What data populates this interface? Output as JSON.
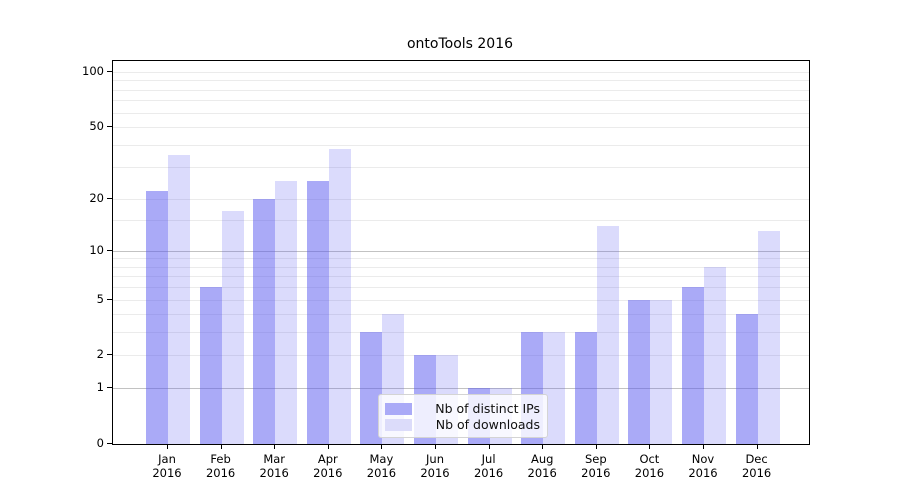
{
  "title": "ontoTools 2016",
  "chart_data": {
    "type": "bar",
    "title": "ontoTools 2016",
    "x_months": [
      "Jan",
      "Feb",
      "Mar",
      "Apr",
      "May",
      "Jun",
      "Jul",
      "Aug",
      "Sep",
      "Oct",
      "Nov",
      "Dec"
    ],
    "x_year": "2016",
    "series": [
      {
        "name": "Nb of distinct IPs",
        "bar_color": "rgba(85,85,240,0.5)",
        "swatch_color": "#aaaaf7",
        "values": [
          22,
          6,
          20,
          25,
          3,
          2,
          1,
          3,
          3,
          5,
          6,
          4
        ]
      },
      {
        "name": "Nb of downloads",
        "bar_color": "rgba(85,85,240,0.21)",
        "swatch_color": "#dcdcfa",
        "values": [
          35,
          17,
          25,
          38,
          4,
          2,
          1,
          3,
          14,
          5,
          8,
          13
        ]
      }
    ],
    "y_axis": {
      "scale": "mirrorLog",
      "tick_labels": [
        100,
        50,
        20,
        10,
        5,
        2,
        1,
        0
      ],
      "range": [
        0,
        113
      ]
    },
    "gridlines": {
      "major": [
        1,
        10
      ],
      "minor": [
        2,
        3,
        4,
        5,
        6,
        7,
        8,
        9,
        15,
        20,
        30,
        40,
        50,
        60,
        70,
        80,
        90,
        100
      ],
      "grid": "on"
    },
    "legend_position": "inside-bottom-center"
  }
}
